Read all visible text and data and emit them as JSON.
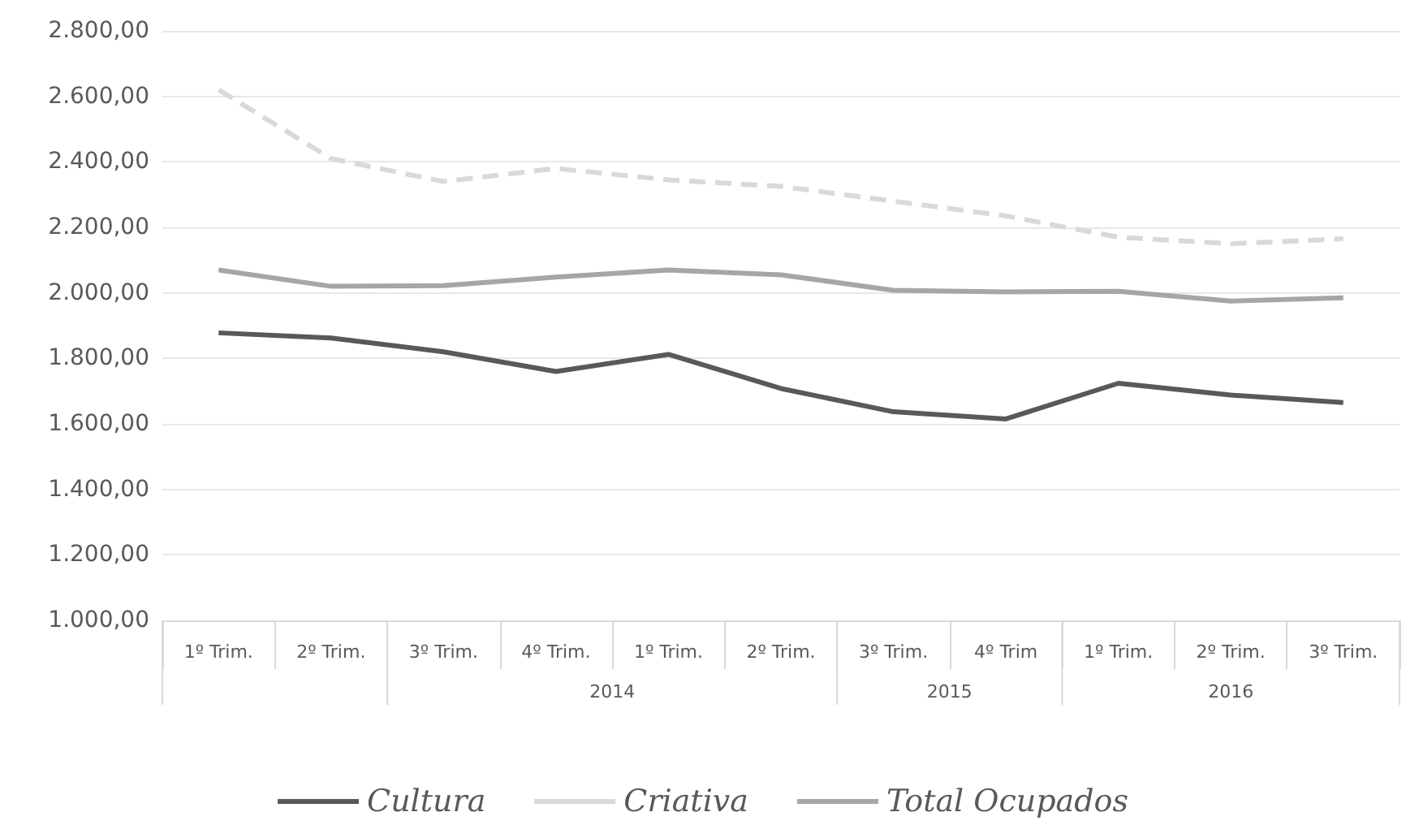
{
  "chart_data": {
    "type": "line",
    "categories": [
      "1º Trim.",
      "2º Trim.",
      "3º Trim.",
      "4º Trim.",
      "1º Trim.",
      "2º Trim.",
      "3º Trim.",
      "4º Trim",
      "1º Trim.",
      "2º Trim.",
      "3º Trim."
    ],
    "annotations": [
      "2014",
      "2015",
      "2016"
    ],
    "series": [
      {
        "name": "Cultura",
        "color": "#595959",
        "line_style": "solid",
        "values": [
          1878,
          1862,
          1820,
          1760,
          1812,
          1708,
          1637,
          1615,
          1724,
          1688,
          1665
        ]
      },
      {
        "name": "Criativa",
        "color": "#d9d9d9",
        "line_style": "dashed",
        "values": [
          2620,
          2410,
          2340,
          2380,
          2345,
          2325,
          2280,
          2235,
          2170,
          2150,
          2165
        ]
      },
      {
        "name": "Total Ocupados",
        "color": "#a6a6a6",
        "line_style": "solid",
        "values": [
          2070,
          2020,
          2022,
          2048,
          2070,
          2055,
          2008,
          2003,
          2005,
          1975,
          1985
        ]
      }
    ],
    "ylim": [
      1000,
      2800
    ],
    "yticks": [
      {
        "value": 1000,
        "label": "1.000,00"
      },
      {
        "value": 1200,
        "label": "1.200,00"
      },
      {
        "value": 1400,
        "label": "1.400,00"
      },
      {
        "value": 1600,
        "label": "1.600,00"
      },
      {
        "value": 1800,
        "label": "1.800,00"
      },
      {
        "value": 2000,
        "label": "2.000,00"
      },
      {
        "value": 2200,
        "label": "2.200,00"
      },
      {
        "value": 2400,
        "label": "2.400,00"
      },
      {
        "value": 2600,
        "label": "2.600,00"
      },
      {
        "value": 2800,
        "label": "2.800,00"
      }
    ],
    "grid": "y",
    "legend": "bottom",
    "marker": "none"
  }
}
